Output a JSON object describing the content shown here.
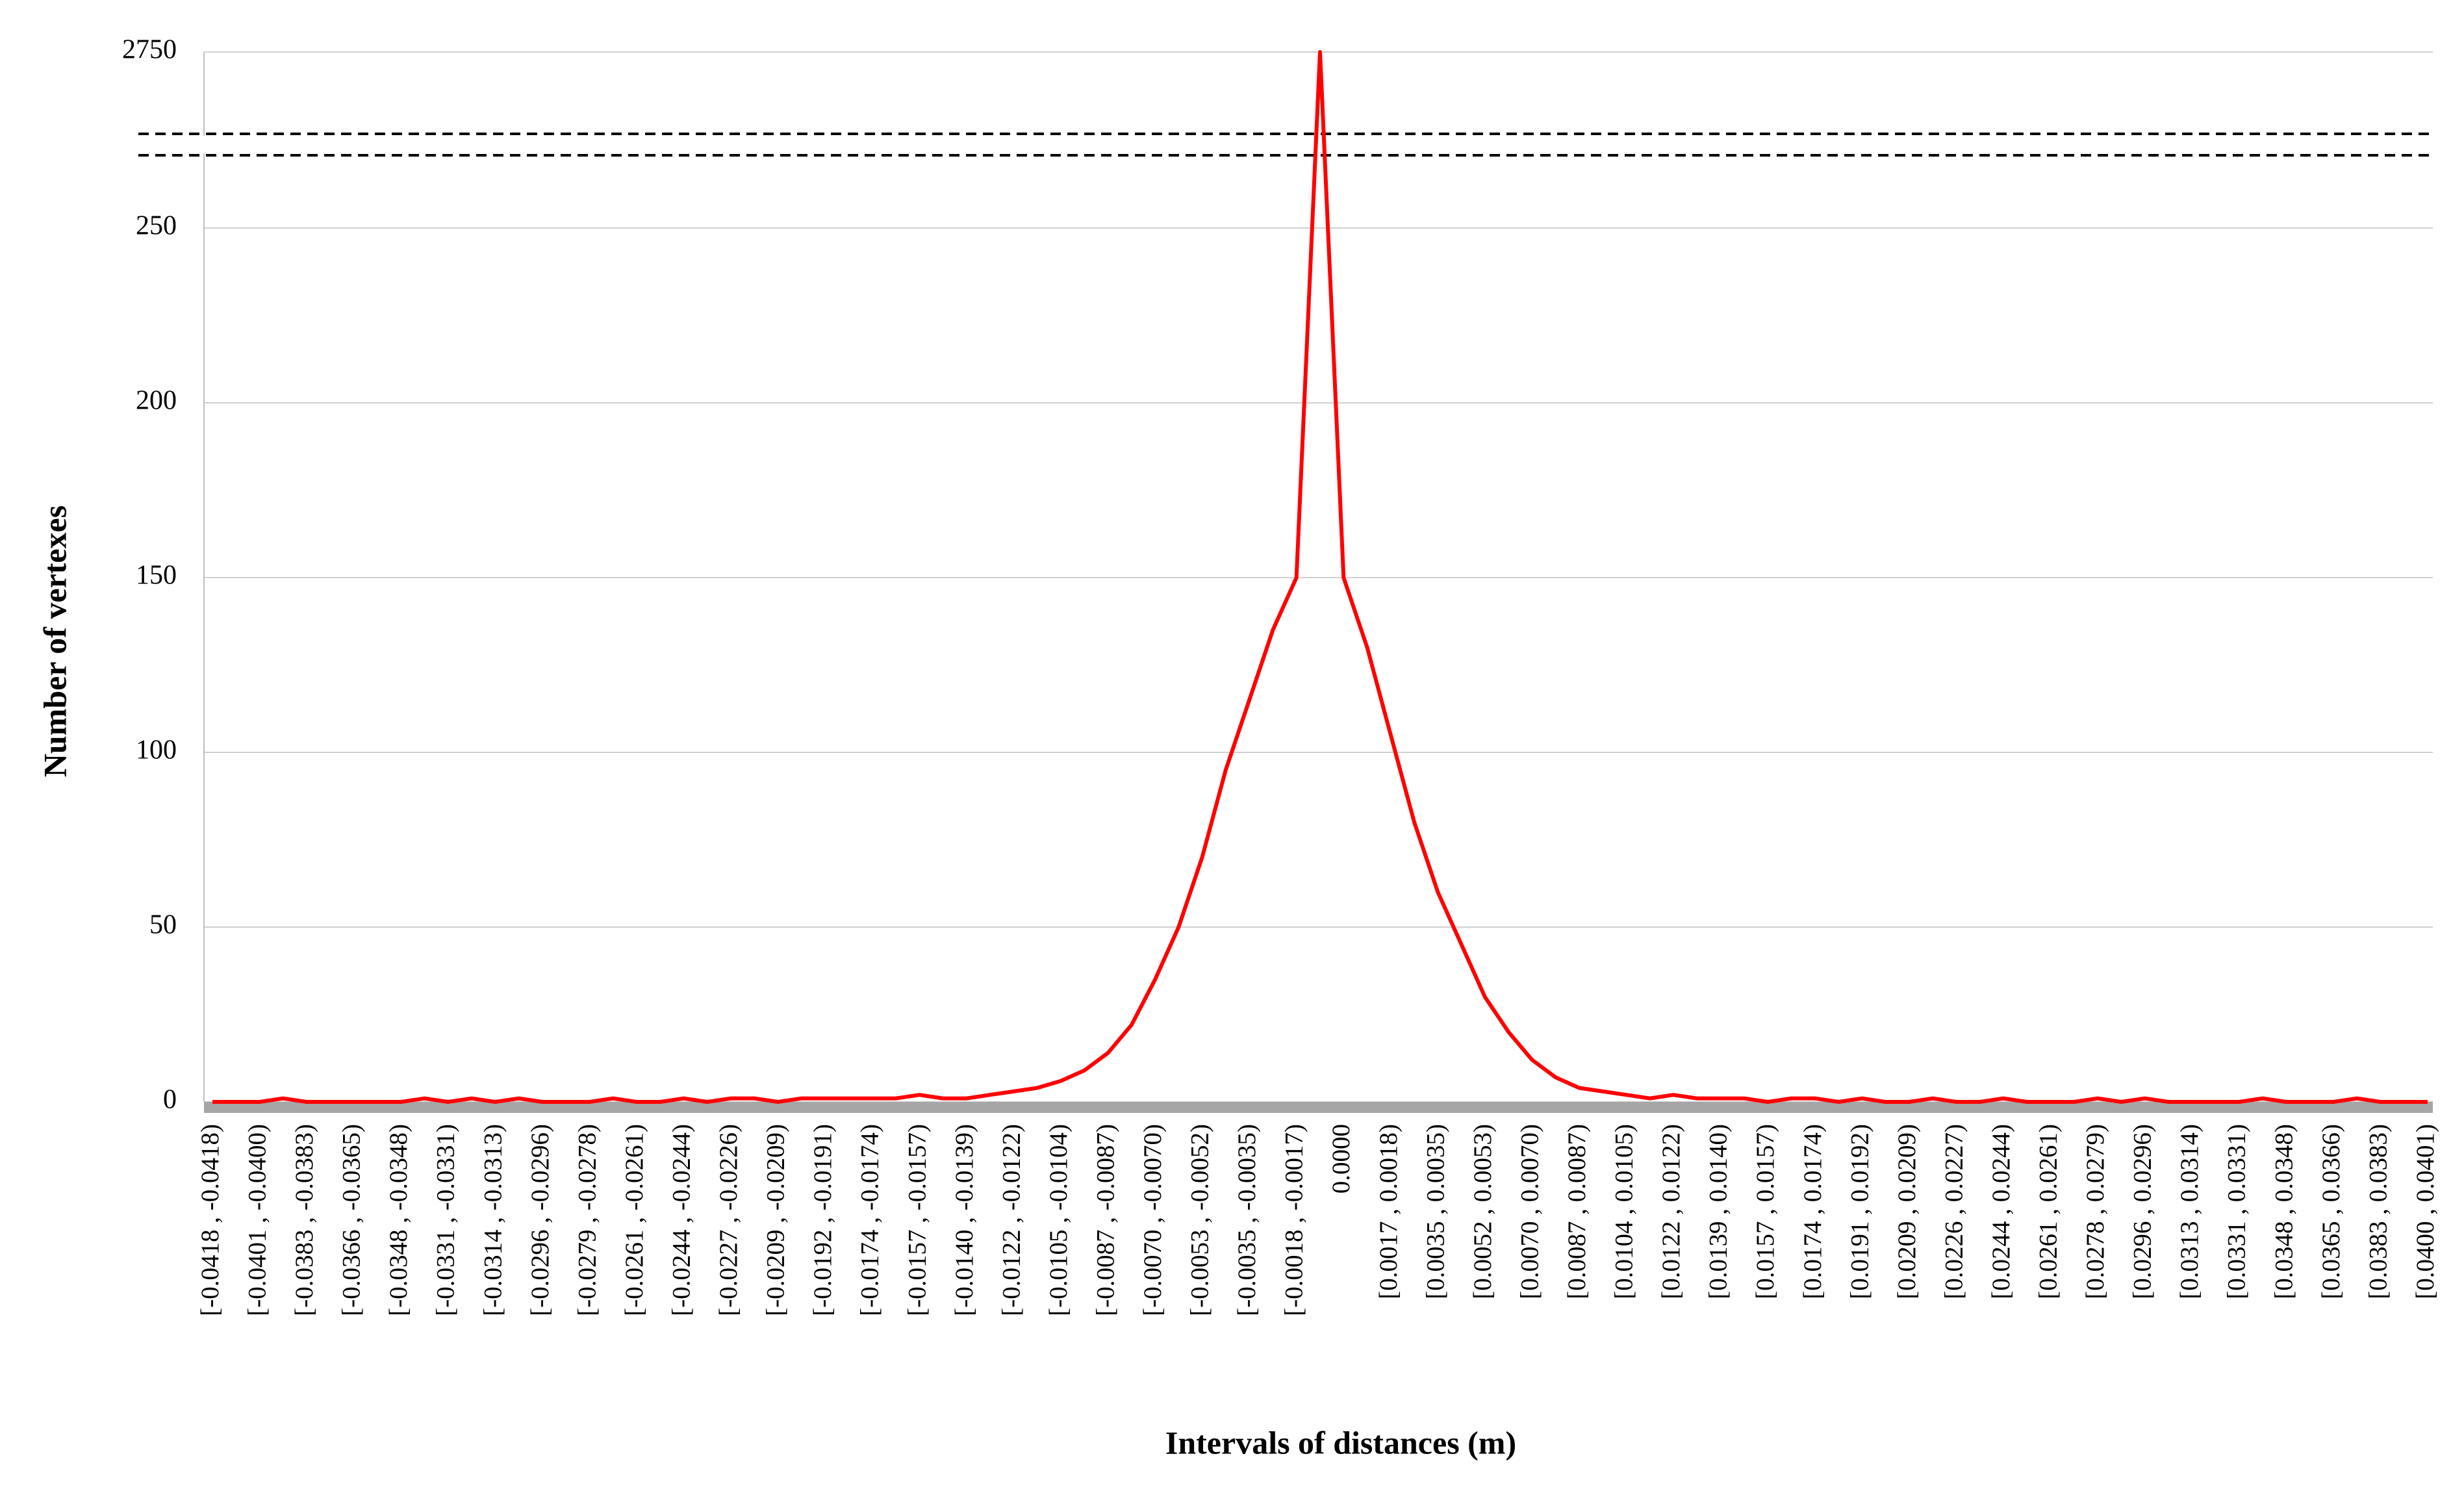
{
  "chart_data": {
    "type": "line",
    "x_label": "Intervals of distances (m)",
    "y_label": "Number of vertexes",
    "categories": [
      "[-0.0418 , -0.0418)",
      null,
      "[-0.0401 , -0.0400)",
      null,
      "[-0.0383 , -0.0383)",
      null,
      "[-0.0366 , -0.0365)",
      null,
      "[-0.0348 , -0.0348)",
      null,
      "[-0.0331 , -0.0331)",
      null,
      "[-0.0314 , -0.0313)",
      null,
      "[-0.0296 , -0.0296)",
      null,
      "[-0.0279 , -0.0278)",
      null,
      "[-0.0261 , -0.0261)",
      null,
      "[-0.0244 , -0.0244)",
      null,
      "[-0.0227 , -0.0226)",
      null,
      "[-0.0209 , -0.0209)",
      null,
      "[-0.0192 , -0.0191)",
      null,
      "[-0.0174 , -0.0174)",
      null,
      "[-0.0157 , -0.0157)",
      null,
      "[-0.0140 , -0.0139)",
      null,
      "[-0.0122 , -0.0122)",
      null,
      "[-0.0105 , -0.0104)",
      null,
      "[-0.0087 , -0.0087)",
      null,
      "[-0.0070 , -0.0070)",
      null,
      "[-0.0053 , -0.0052)",
      null,
      "[-0.0035 , -0.0035)",
      null,
      "[-0.0018 , -0.0017)",
      null,
      "0.0000",
      null,
      "[0.0017 , 0.0018)",
      null,
      "[0.0035 , 0.0035)",
      null,
      "[0.0052 , 0.0053)",
      null,
      "[0.0070 , 0.0070)",
      null,
      "[0.0087 , 0.0087)",
      null,
      "[0.0104 , 0.0105)",
      null,
      "[0.0122 , 0.0122)",
      null,
      "[0.0139 , 0.0140)",
      null,
      "[0.0157 , 0.0157)",
      null,
      "[0.0174 , 0.0174)",
      null,
      "[0.0191 , 0.0192)",
      null,
      "[0.0209 , 0.0209)",
      null,
      "[0.0226 , 0.0227)",
      null,
      "[0.0244 , 0.0244)",
      null,
      "[0.0261 , 0.0261)",
      null,
      "[0.0278 , 0.0279)",
      null,
      "[0.0296 , 0.0296)",
      null,
      "[0.0313 , 0.0314)",
      null,
      "[0.0331 , 0.0331)",
      null,
      "[0.0348 , 0.0348)",
      null,
      "[0.0365 , 0.0366)",
      null,
      "[0.0383 , 0.0383)",
      null,
      "[0.0400 , 0.0401)"
    ],
    "values": [
      0,
      0,
      0,
      1,
      0,
      0,
      0,
      0,
      0,
      1,
      0,
      1,
      0,
      1,
      0,
      0,
      0,
      1,
      0,
      0,
      1,
      0,
      1,
      1,
      0,
      1,
      1,
      1,
      1,
      1,
      2,
      1,
      1,
      2,
      3,
      4,
      6,
      9,
      14,
      22,
      35,
      50,
      70,
      95,
      115,
      135,
      150,
      2750,
      150,
      130,
      105,
      80,
      60,
      45,
      30,
      20,
      12,
      7,
      4,
      3,
      2,
      1,
      2,
      1,
      1,
      1,
      0,
      1,
      1,
      0,
      1,
      0,
      0,
      1,
      0,
      0,
      1,
      0,
      0,
      0,
      1,
      0,
      1,
      0,
      0,
      0,
      0,
      1,
      0,
      0,
      0,
      1,
      0,
      0,
      0
    ],
    "color": "#ff0000",
    "ylim": [
      0,
      2750
    ],
    "yticks": [
      0,
      50,
      100,
      150,
      200,
      250,
      2750
    ],
    "broken_axis": true,
    "grid": true
  }
}
